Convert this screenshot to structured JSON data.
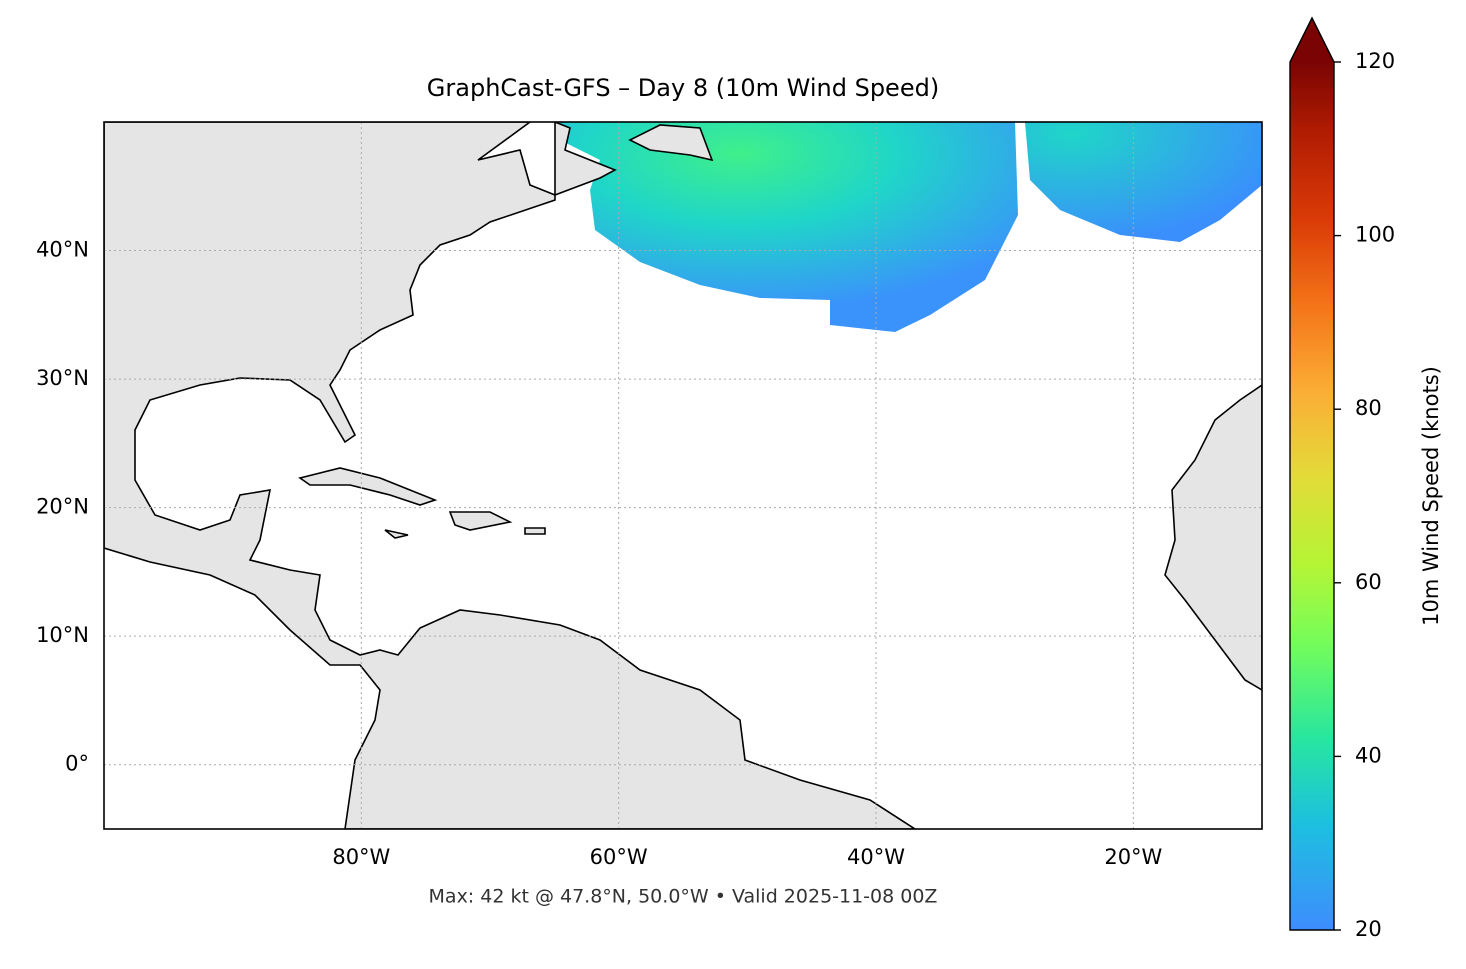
{
  "chart_data": {
    "type": "map",
    "title": "GraphCast-GFS – Day 8 (10m Wind Speed)",
    "footnote": "Max: 42 kt @ 47.8°N, 50.0°W • Valid 2025-11-08 00Z",
    "xlim": [
      -100,
      -10
    ],
    "ylim": [
      -5,
      50
    ],
    "xticks": [
      {
        "value": -80,
        "label": "80°W"
      },
      {
        "value": -60,
        "label": "60°W"
      },
      {
        "value": -40,
        "label": "40°W"
      },
      {
        "value": -20,
        "label": "20°W"
      }
    ],
    "yticks": [
      {
        "value": 0,
        "label": "0°"
      },
      {
        "value": 10,
        "label": "10°N"
      },
      {
        "value": 20,
        "label": "20°N"
      },
      {
        "value": 30,
        "label": "30°N"
      },
      {
        "value": 40,
        "label": "40°N"
      }
    ],
    "grid": true,
    "colorbar": {
      "label": "10m Wind Speed (knots)",
      "lim": [
        20,
        120
      ],
      "ticks": [
        20,
        40,
        60,
        80,
        100,
        120
      ]
    }
  }
}
